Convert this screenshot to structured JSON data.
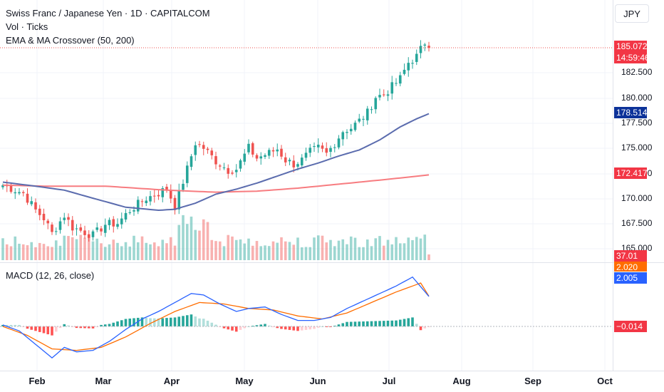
{
  "header": {
    "title": "Swiss Franc / Japanese Yen · 1D · CAPITALCOM",
    "volume_label": "Vol · Ticks",
    "ma_label": "EMA & MA Crossover (50, 200)",
    "macd_label": "MACD (12, 26, close)",
    "currency": "JPY"
  },
  "price_axis": {
    "ticks": [
      "182.500",
      "180.000",
      "177.500",
      "175.000",
      "172.500",
      "170.000",
      "167.500",
      "165.000"
    ]
  },
  "badges": {
    "last_price": "185.072",
    "countdown": "14:59:46",
    "ema": "178.514",
    "ma": "172.417",
    "volume": "37.01 K",
    "macd_signal": "2.020",
    "macd_line": "2.005",
    "histogram": "−0.014"
  },
  "time_axis": {
    "labels": [
      "Feb",
      "Mar",
      "Apr",
      "May",
      "Jun",
      "Jul",
      "Aug",
      "Sep",
      "Oct"
    ]
  },
  "colors": {
    "up": "#26a69a",
    "down": "#ef5350",
    "ema": "#5b6cae",
    "ma": "#f77c80",
    "macd": "#2962ff",
    "signal": "#ff6d00",
    "ema_badge": "#0c3299"
  },
  "chart_data": {
    "type": "candlestick",
    "symbol": "CHFJPY",
    "price_range": [
      165,
      185.6
    ],
    "price_anchors": [
      {
        "i": 0,
        "p": 171.4
      },
      {
        "i": 5,
        "p": 170.6
      },
      {
        "i": 8,
        "p": 168.9
      },
      {
        "i": 10,
        "p": 168.1
      },
      {
        "i": 12,
        "p": 166.6
      },
      {
        "i": 15,
        "p": 168.4
      },
      {
        "i": 17,
        "p": 167.2
      },
      {
        "i": 22,
        "p": 166.4
      },
      {
        "i": 25,
        "p": 167.5
      },
      {
        "i": 28,
        "p": 167.6
      },
      {
        "i": 31,
        "p": 168.9
      },
      {
        "i": 35,
        "p": 170.1
      },
      {
        "i": 38,
        "p": 170.6
      },
      {
        "i": 40,
        "p": 171.1
      },
      {
        "i": 42,
        "p": 169.3
      },
      {
        "i": 45,
        "p": 173.0
      },
      {
        "i": 47,
        "p": 175.6
      },
      {
        "i": 49,
        "p": 175.1
      },
      {
        "i": 52,
        "p": 173.8
      },
      {
        "i": 55,
        "p": 172.9
      },
      {
        "i": 57,
        "p": 173.0
      },
      {
        "i": 60,
        "p": 175.1
      },
      {
        "i": 62,
        "p": 174.1
      },
      {
        "i": 65,
        "p": 174.6
      },
      {
        "i": 67,
        "p": 175.0
      },
      {
        "i": 69,
        "p": 173.9
      },
      {
        "i": 71,
        "p": 173.5
      },
      {
        "i": 73,
        "p": 173.9
      },
      {
        "i": 75,
        "p": 174.7
      },
      {
        "i": 77,
        "p": 175.1
      },
      {
        "i": 79,
        "p": 174.5
      },
      {
        "i": 81,
        "p": 175.6
      },
      {
        "i": 83,
        "p": 176.8
      },
      {
        "i": 85,
        "p": 177.1
      },
      {
        "i": 87,
        "p": 177.8
      },
      {
        "i": 89,
        "p": 178.6
      },
      {
        "i": 91,
        "p": 180.2
      },
      {
        "i": 93,
        "p": 180.4
      },
      {
        "i": 95,
        "p": 181.2
      },
      {
        "i": 97,
        "p": 182.0
      },
      {
        "i": 99,
        "p": 183.6
      },
      {
        "i": 101,
        "p": 184.2
      },
      {
        "i": 103,
        "p": 185.6
      },
      {
        "i": 104,
        "p": 185.072
      }
    ],
    "ema_points": [
      {
        "i": 0,
        "p": 171.7
      },
      {
        "i": 8,
        "p": 171.3
      },
      {
        "i": 15,
        "p": 170.9
      },
      {
        "i": 22,
        "p": 170.1
      },
      {
        "i": 30,
        "p": 169.2
      },
      {
        "i": 38,
        "p": 168.9
      },
      {
        "i": 42,
        "p": 169.0
      },
      {
        "i": 47,
        "p": 169.6
      },
      {
        "i": 52,
        "p": 170.5
      },
      {
        "i": 57,
        "p": 171.0
      },
      {
        "i": 62,
        "p": 171.6
      },
      {
        "i": 67,
        "p": 172.3
      },
      {
        "i": 72,
        "p": 173.0
      },
      {
        "i": 77,
        "p": 173.6
      },
      {
        "i": 82,
        "p": 174.3
      },
      {
        "i": 87,
        "p": 174.9
      },
      {
        "i": 92,
        "p": 175.9
      },
      {
        "i": 97,
        "p": 177.2
      },
      {
        "i": 101,
        "p": 178.0
      },
      {
        "i": 104,
        "p": 178.514
      }
    ],
    "ma_points": [
      {
        "i": 0,
        "p": 171.4
      },
      {
        "i": 10,
        "p": 171.3
      },
      {
        "i": 25,
        "p": 171.3
      },
      {
        "i": 40,
        "p": 170.9
      },
      {
        "i": 52,
        "p": 170.7
      },
      {
        "i": 62,
        "p": 170.8
      },
      {
        "i": 72,
        "p": 171.1
      },
      {
        "i": 82,
        "p": 171.5
      },
      {
        "i": 92,
        "p": 171.9
      },
      {
        "i": 104,
        "p": 172.417
      }
    ],
    "macd_range": [
      -3,
      3.6
    ],
    "macd_points": [
      {
        "i": 0,
        "v": 0.1
      },
      {
        "i": 4,
        "v": -0.3
      },
      {
        "i": 8,
        "v": -1.2
      },
      {
        "i": 12,
        "v": -2.1
      },
      {
        "i": 15,
        "v": -1.4
      },
      {
        "i": 18,
        "v": -1.7
      },
      {
        "i": 22,
        "v": -1.6
      },
      {
        "i": 26,
        "v": -1.0
      },
      {
        "i": 30,
        "v": -0.2
      },
      {
        "i": 34,
        "v": 0.5
      },
      {
        "i": 38,
        "v": 1.0
      },
      {
        "i": 42,
        "v": 1.6
      },
      {
        "i": 46,
        "v": 2.2
      },
      {
        "i": 49,
        "v": 2.1
      },
      {
        "i": 53,
        "v": 1.5
      },
      {
        "i": 57,
        "v": 1.0
      },
      {
        "i": 60,
        "v": 1.2
      },
      {
        "i": 64,
        "v": 1.3
      },
      {
        "i": 68,
        "v": 0.8
      },
      {
        "i": 72,
        "v": 0.4
      },
      {
        "i": 76,
        "v": 0.4
      },
      {
        "i": 80,
        "v": 0.6
      },
      {
        "i": 84,
        "v": 1.2
      },
      {
        "i": 88,
        "v": 1.7
      },
      {
        "i": 92,
        "v": 2.2
      },
      {
        "i": 96,
        "v": 2.7
      },
      {
        "i": 100,
        "v": 3.3
      },
      {
        "i": 104,
        "v": 2.005
      }
    ],
    "signal_points": [
      {
        "i": 0,
        "v": 0.0
      },
      {
        "i": 6,
        "v": -0.6
      },
      {
        "i": 12,
        "v": -1.5
      },
      {
        "i": 18,
        "v": -1.6
      },
      {
        "i": 24,
        "v": -1.4
      },
      {
        "i": 30,
        "v": -0.7
      },
      {
        "i": 36,
        "v": 0.2
      },
      {
        "i": 42,
        "v": 1.0
      },
      {
        "i": 48,
        "v": 1.6
      },
      {
        "i": 54,
        "v": 1.5
      },
      {
        "i": 60,
        "v": 1.2
      },
      {
        "i": 66,
        "v": 1.1
      },
      {
        "i": 72,
        "v": 0.7
      },
      {
        "i": 78,
        "v": 0.5
      },
      {
        "i": 84,
        "v": 0.9
      },
      {
        "i": 90,
        "v": 1.6
      },
      {
        "i": 96,
        "v": 2.3
      },
      {
        "i": 102,
        "v": 2.9
      },
      {
        "i": 104,
        "v": 2.02
      }
    ],
    "histogram_last": -0.014,
    "x_labels": [
      "Feb",
      "Mar",
      "Apr",
      "May",
      "Jun",
      "Jul",
      "Aug",
      "Sep",
      "Oct"
    ]
  }
}
